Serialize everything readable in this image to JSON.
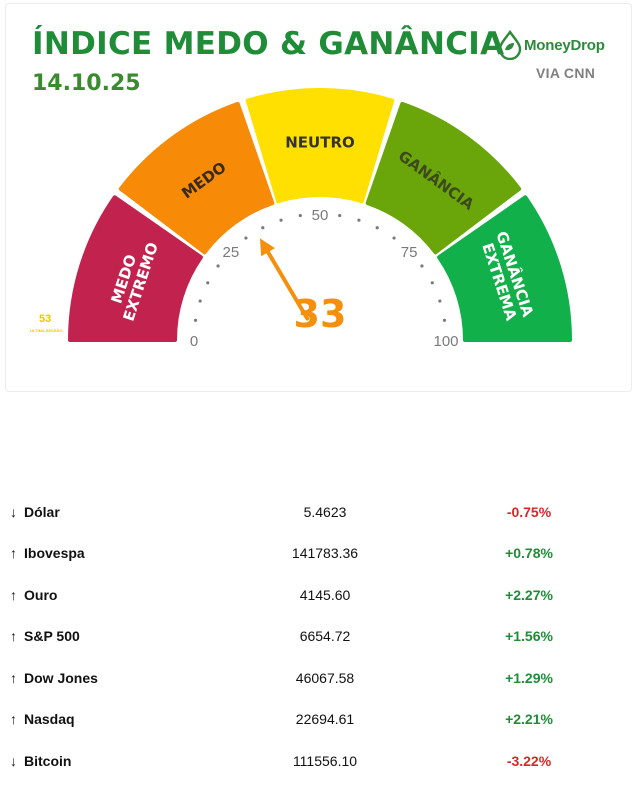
{
  "header": {
    "title": "ÍNDICE MEDO & GANÂNCIA",
    "date": "14.10.25",
    "brand_name": "MoneyDrop",
    "brand_sub": "VIA CNN"
  },
  "gauge": {
    "value": "33",
    "zones": [
      {
        "label_1": "MEDO",
        "label_2": "EXTREMO",
        "color": "#c2234e"
      },
      {
        "label_1": "MEDO",
        "color": "#f78a07"
      },
      {
        "label_1": "NEUTRO",
        "color": "#ffe000"
      },
      {
        "label_1": "GANÂNCIA",
        "color": "#6aa50a"
      },
      {
        "label_1": "GANÂNCIA",
        "label_2": "EXTREMA",
        "color": "#12b04a"
      }
    ],
    "scale": [
      "0",
      "25",
      "50",
      "75",
      "100"
    ],
    "needle_color": "#f5900e",
    "side_value": "53",
    "side_note": "ÚLTIMA SESSÃO"
  },
  "markets": [
    {
      "arrow": "↓",
      "name": "Dólar",
      "value": "5.4623",
      "change": "-0.75%",
      "direction": "down"
    },
    {
      "arrow": "↑",
      "name": "Ibovespa",
      "value": "141783.36",
      "change": "+0.78%",
      "direction": "up"
    },
    {
      "arrow": "↑",
      "name": "Ouro",
      "value": "4145.60",
      "change": "+2.27%",
      "direction": "up"
    },
    {
      "arrow": "↑",
      "name": "S&P 500",
      "value": "6654.72",
      "change": "+1.56%",
      "direction": "up"
    },
    {
      "arrow": "↑",
      "name": "Dow Jones",
      "value": "46067.58",
      "change": "+1.29%",
      "direction": "up"
    },
    {
      "arrow": "↑",
      "name": "Nasdaq",
      "value": "22694.61",
      "change": "+2.21%",
      "direction": "up"
    },
    {
      "arrow": "↓",
      "name": "Bitcoin",
      "value": "111556.10",
      "change": "-3.22%",
      "direction": "down"
    }
  ],
  "colors": {
    "title_green": "#1f8c38",
    "positive": "#1f8c38",
    "negative": "#d62828"
  }
}
